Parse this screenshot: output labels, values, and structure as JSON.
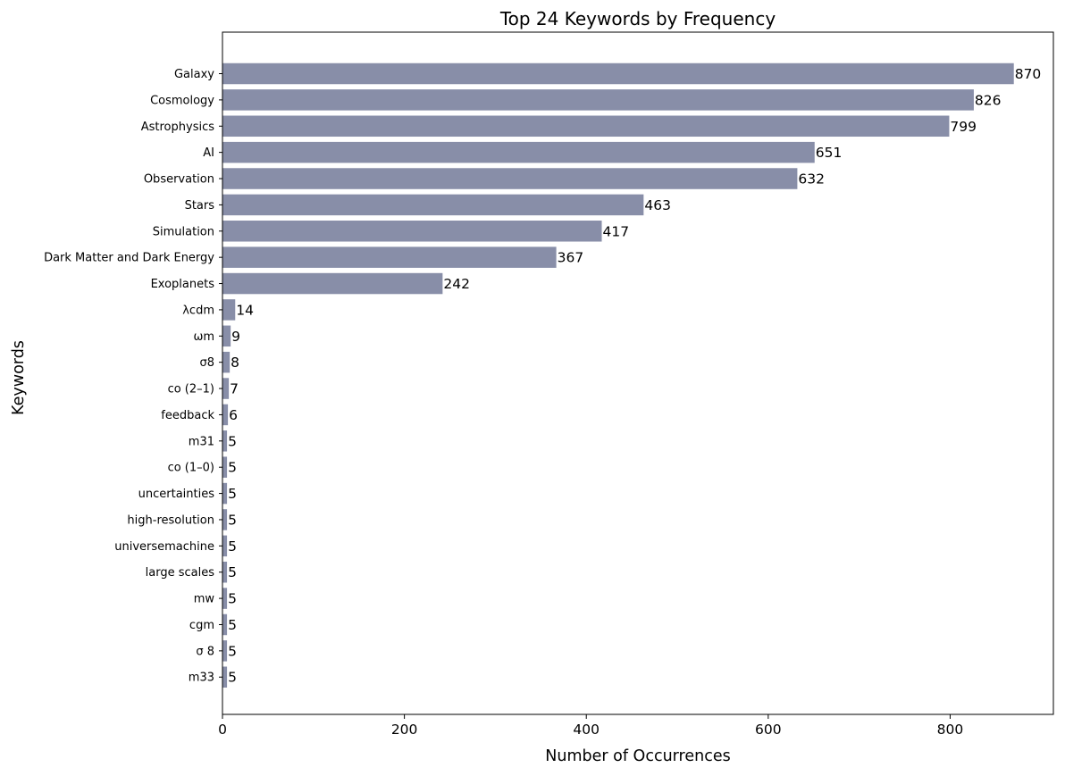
{
  "chart_data": {
    "type": "bar",
    "orientation": "horizontal",
    "title": "Top 24 Keywords by Frequency",
    "xlabel": "Number of Occurrences",
    "ylabel": "Keywords",
    "xlim": [
      0,
      913.5
    ],
    "xticks": [
      0,
      200,
      400,
      600,
      800
    ],
    "grid": false,
    "legend": "none",
    "bar_color": "#888ea8",
    "categories": [
      "Galaxy",
      "Cosmology",
      "Astrophysics",
      "AI",
      "Observation",
      "Stars",
      "Simulation",
      "Dark Matter and Dark Energy",
      "Exoplanets",
      "λcdm",
      "ωm",
      "σ8",
      "co (2–1)",
      "feedback",
      "m31",
      "co (1–0)",
      "uncertainties",
      "high-resolution",
      "universemachine",
      "large scales",
      "mw",
      "cgm",
      "σ 8",
      "m33"
    ],
    "values": [
      870,
      826,
      799,
      651,
      632,
      463,
      417,
      367,
      242,
      14,
      9,
      8,
      7,
      6,
      5,
      5,
      5,
      5,
      5,
      5,
      5,
      5,
      5,
      5
    ]
  }
}
